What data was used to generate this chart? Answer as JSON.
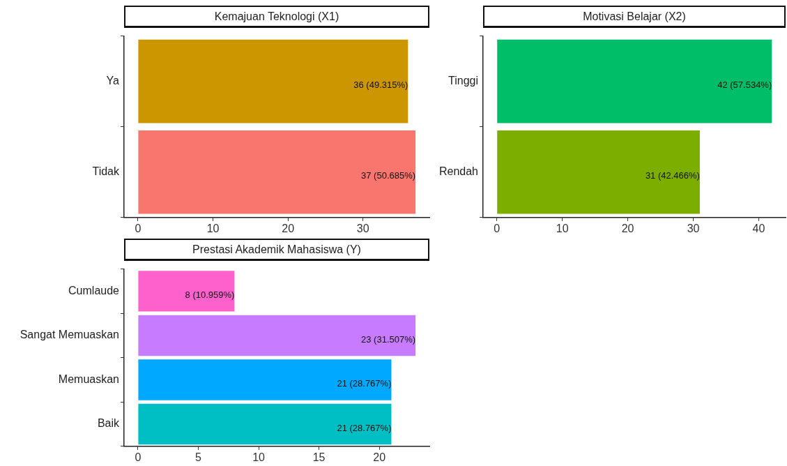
{
  "chart_data": [
    {
      "type": "bar",
      "orientation": "horizontal",
      "title": "Kemajuan Teknologi (X1)",
      "categories": [
        "Ya",
        "Tidak"
      ],
      "values": [
        36,
        37
      ],
      "colors": [
        "#cc9600",
        "#f8766d"
      ],
      "value_labels": [
        "36 (49.315%)",
        "37 (50.685%)"
      ],
      "xlim": [
        -1.85,
        38.85
      ],
      "xticks": [
        0,
        10,
        20,
        30
      ],
      "grid": false,
      "legend": false
    },
    {
      "type": "bar",
      "orientation": "horizontal",
      "title": "Motivasi Belajar (X2)",
      "categories": [
        "Tinggi",
        "Rendah"
      ],
      "values": [
        42,
        31
      ],
      "colors": [
        "#00be67",
        "#7cae00"
      ],
      "value_labels": [
        "42 (57.534%)",
        "31 (42.466%)"
      ],
      "xlim": [
        -2.1,
        44.1
      ],
      "xticks": [
        0,
        10,
        20,
        30,
        40
      ],
      "grid": false,
      "legend": false
    },
    {
      "type": "bar",
      "orientation": "horizontal",
      "title": "Prestasi Akademik Mahasiswa (Y)",
      "categories": [
        "Cumlaude",
        "Sangat Memuaskan",
        "Memuaskan",
        "Baik"
      ],
      "values": [
        8,
        23,
        21,
        21
      ],
      "colors": [
        "#ff61cc",
        "#c77cff",
        "#00a9ff",
        "#00bfc4"
      ],
      "value_labels": [
        "8 (10.959%)",
        "23 (31.507%)",
        "21 (28.767%)",
        "21 (28.767%)"
      ],
      "xlim": [
        -1.15,
        24.15
      ],
      "xticks": [
        0,
        5,
        10,
        15,
        20
      ],
      "grid": false,
      "legend": false
    }
  ]
}
